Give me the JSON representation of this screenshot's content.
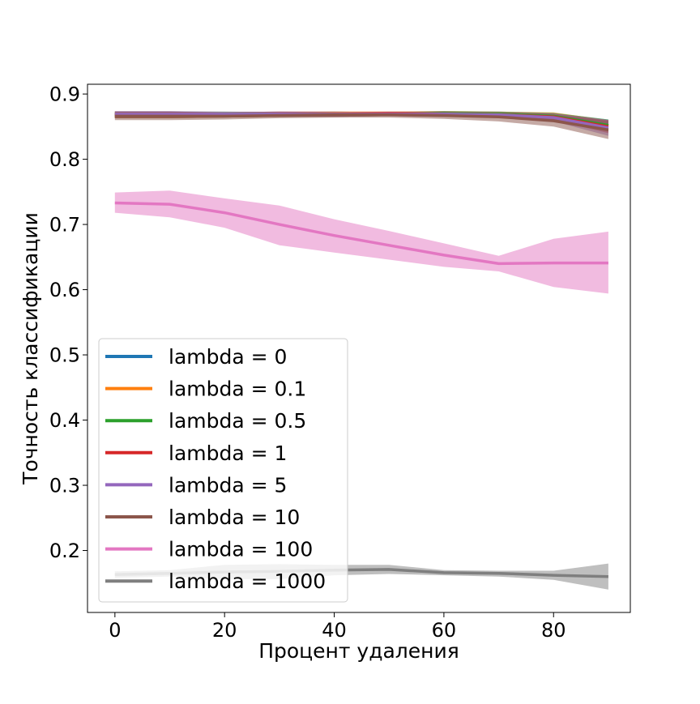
{
  "chart_data": {
    "type": "line",
    "title": "",
    "xlabel": "Процент удаления",
    "ylabel": "Точность классификации",
    "xlim": [
      -5,
      94
    ],
    "ylim": [
      0.105,
      0.915
    ],
    "xticks": [
      0,
      20,
      40,
      60,
      80
    ],
    "xtick_labels": [
      "0",
      "20",
      "40",
      "60",
      "80"
    ],
    "yticks": [
      0.2,
      0.3,
      0.4,
      0.5,
      0.6,
      0.7,
      0.8,
      0.9
    ],
    "ytick_labels": [
      "0.2",
      "0.3",
      "0.4",
      "0.5",
      "0.6",
      "0.7",
      "0.8",
      "0.9"
    ],
    "grid": false,
    "legend_position": "lower-left",
    "x": [
      0,
      10,
      20,
      30,
      40,
      50,
      60,
      70,
      80,
      90
    ],
    "series": [
      {
        "name": "lambda = 0",
        "color": "#1f77b4",
        "values": [
          0.868,
          0.868,
          0.868,
          0.869,
          0.869,
          0.87,
          0.87,
          0.869,
          0.866,
          0.852
        ],
        "lower": [
          0.863,
          0.863,
          0.864,
          0.865,
          0.866,
          0.866,
          0.866,
          0.865,
          0.861,
          0.843
        ],
        "upper": [
          0.873,
          0.873,
          0.872,
          0.873,
          0.872,
          0.873,
          0.873,
          0.873,
          0.871,
          0.861
        ]
      },
      {
        "name": "lambda = 0.1",
        "color": "#ff7f0e",
        "values": [
          0.868,
          0.868,
          0.868,
          0.869,
          0.87,
          0.87,
          0.87,
          0.869,
          0.866,
          0.851
        ],
        "lower": [
          0.863,
          0.863,
          0.864,
          0.865,
          0.866,
          0.866,
          0.866,
          0.865,
          0.86,
          0.842
        ],
        "upper": [
          0.873,
          0.873,
          0.872,
          0.873,
          0.873,
          0.873,
          0.874,
          0.873,
          0.872,
          0.86
        ]
      },
      {
        "name": "lambda = 0.5",
        "color": "#2ca02c",
        "values": [
          0.868,
          0.868,
          0.869,
          0.869,
          0.869,
          0.869,
          0.87,
          0.869,
          0.866,
          0.852
        ],
        "lower": [
          0.863,
          0.863,
          0.864,
          0.865,
          0.865,
          0.866,
          0.866,
          0.865,
          0.861,
          0.843
        ],
        "upper": [
          0.873,
          0.873,
          0.873,
          0.872,
          0.873,
          0.872,
          0.874,
          0.873,
          0.871,
          0.861
        ]
      },
      {
        "name": "lambda = 1",
        "color": "#d62728",
        "values": [
          0.868,
          0.868,
          0.868,
          0.869,
          0.869,
          0.87,
          0.869,
          0.868,
          0.865,
          0.85
        ],
        "lower": [
          0.863,
          0.863,
          0.864,
          0.865,
          0.865,
          0.866,
          0.865,
          0.864,
          0.86,
          0.84
        ],
        "upper": [
          0.873,
          0.873,
          0.872,
          0.873,
          0.873,
          0.873,
          0.873,
          0.872,
          0.87,
          0.86
        ]
      },
      {
        "name": "lambda = 5",
        "color": "#9467bd",
        "values": [
          0.869,
          0.869,
          0.869,
          0.869,
          0.869,
          0.869,
          0.869,
          0.868,
          0.864,
          0.848
        ],
        "lower": [
          0.864,
          0.864,
          0.865,
          0.865,
          0.865,
          0.866,
          0.865,
          0.864,
          0.858,
          0.836
        ],
        "upper": [
          0.874,
          0.874,
          0.873,
          0.873,
          0.873,
          0.872,
          0.873,
          0.872,
          0.87,
          0.86
        ]
      },
      {
        "name": "lambda = 10",
        "color": "#8c564b",
        "values": [
          0.866,
          0.866,
          0.866,
          0.867,
          0.868,
          0.868,
          0.867,
          0.865,
          0.859,
          0.845
        ],
        "lower": [
          0.86,
          0.86,
          0.861,
          0.863,
          0.864,
          0.864,
          0.862,
          0.858,
          0.85,
          0.831
        ],
        "upper": [
          0.872,
          0.872,
          0.871,
          0.871,
          0.872,
          0.872,
          0.872,
          0.872,
          0.868,
          0.859
        ]
      },
      {
        "name": "lambda = 100",
        "color": "#e377c2",
        "values": [
          0.733,
          0.731,
          0.718,
          0.7,
          0.683,
          0.668,
          0.653,
          0.64,
          0.641,
          0.641
        ],
        "lower": [
          0.718,
          0.711,
          0.695,
          0.668,
          0.657,
          0.646,
          0.635,
          0.628,
          0.604,
          0.594
        ],
        "upper": [
          0.749,
          0.752,
          0.74,
          0.729,
          0.708,
          0.69,
          0.671,
          0.652,
          0.678,
          0.689
        ]
      },
      {
        "name": "lambda = 1000",
        "color": "#7f7f7f",
        "values": [
          0.163,
          0.165,
          0.167,
          0.168,
          0.17,
          0.171,
          0.166,
          0.165,
          0.162,
          0.16
        ],
        "lower": [
          0.158,
          0.16,
          0.156,
          0.156,
          0.162,
          0.164,
          0.162,
          0.16,
          0.155,
          0.14
        ],
        "upper": [
          0.168,
          0.17,
          0.178,
          0.179,
          0.178,
          0.178,
          0.17,
          0.169,
          0.169,
          0.18
        ]
      }
    ]
  }
}
